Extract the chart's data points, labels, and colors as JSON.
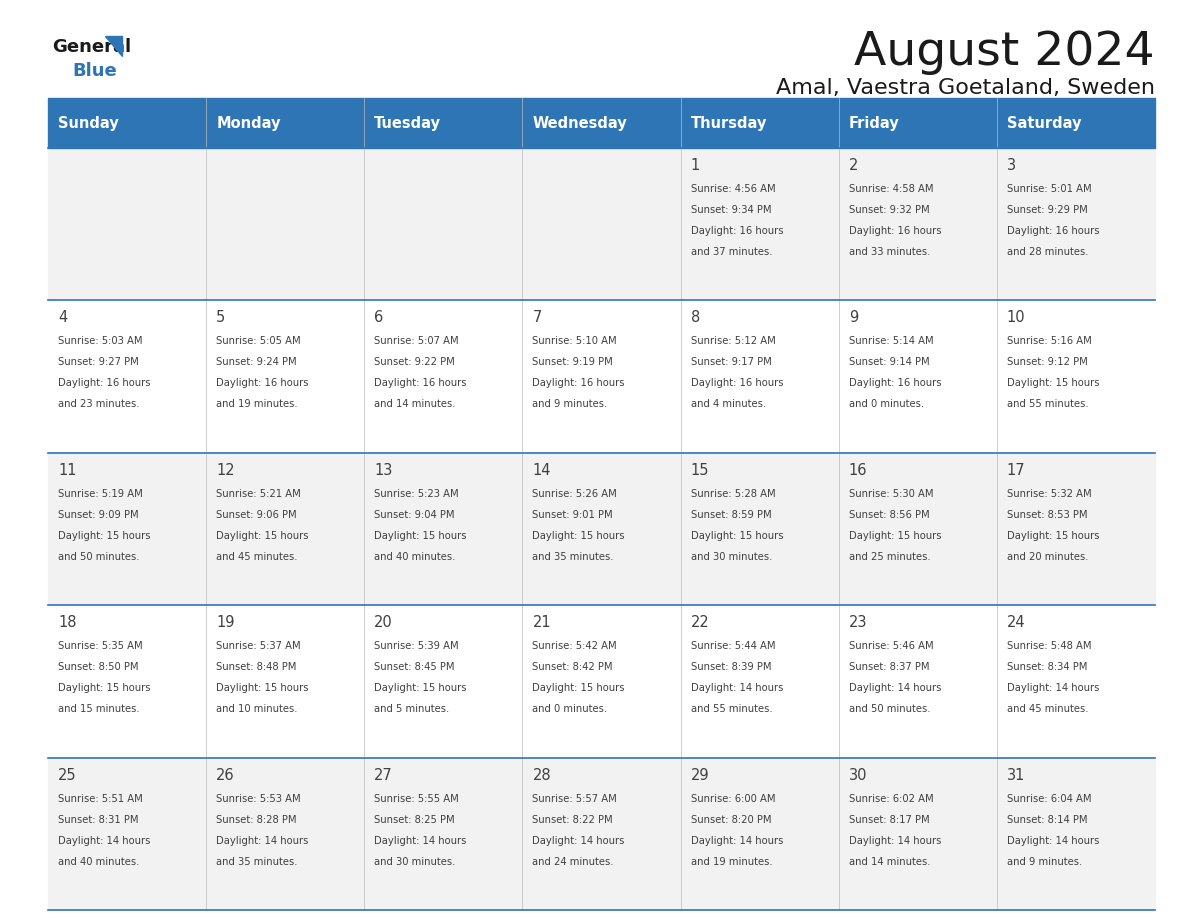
{
  "title": "August 2024",
  "subtitle": "Amal, Vaestra Goetaland, Sweden",
  "days_of_week": [
    "Sunday",
    "Monday",
    "Tuesday",
    "Wednesday",
    "Thursday",
    "Friday",
    "Saturday"
  ],
  "header_bg": "#2E75B6",
  "header_text_color": "#FFFFFF",
  "row_bg_even": "#F2F2F2",
  "row_bg_odd": "#FFFFFF",
  "separator_color": "#2E75B6",
  "text_color": "#404040",
  "calendar_data": [
    [
      null,
      null,
      null,
      null,
      {
        "day": 1,
        "sunrise": "4:56 AM",
        "sunset": "9:34 PM",
        "daylight_hours": 16,
        "daylight_minutes": 37
      },
      {
        "day": 2,
        "sunrise": "4:58 AM",
        "sunset": "9:32 PM",
        "daylight_hours": 16,
        "daylight_minutes": 33
      },
      {
        "day": 3,
        "sunrise": "5:01 AM",
        "sunset": "9:29 PM",
        "daylight_hours": 16,
        "daylight_minutes": 28
      }
    ],
    [
      {
        "day": 4,
        "sunrise": "5:03 AM",
        "sunset": "9:27 PM",
        "daylight_hours": 16,
        "daylight_minutes": 23
      },
      {
        "day": 5,
        "sunrise": "5:05 AM",
        "sunset": "9:24 PM",
        "daylight_hours": 16,
        "daylight_minutes": 19
      },
      {
        "day": 6,
        "sunrise": "5:07 AM",
        "sunset": "9:22 PM",
        "daylight_hours": 16,
        "daylight_minutes": 14
      },
      {
        "day": 7,
        "sunrise": "5:10 AM",
        "sunset": "9:19 PM",
        "daylight_hours": 16,
        "daylight_minutes": 9
      },
      {
        "day": 8,
        "sunrise": "5:12 AM",
        "sunset": "9:17 PM",
        "daylight_hours": 16,
        "daylight_minutes": 4
      },
      {
        "day": 9,
        "sunrise": "5:14 AM",
        "sunset": "9:14 PM",
        "daylight_hours": 16,
        "daylight_minutes": 0
      },
      {
        "day": 10,
        "sunrise": "5:16 AM",
        "sunset": "9:12 PM",
        "daylight_hours": 15,
        "daylight_minutes": 55
      }
    ],
    [
      {
        "day": 11,
        "sunrise": "5:19 AM",
        "sunset": "9:09 PM",
        "daylight_hours": 15,
        "daylight_minutes": 50
      },
      {
        "day": 12,
        "sunrise": "5:21 AM",
        "sunset": "9:06 PM",
        "daylight_hours": 15,
        "daylight_minutes": 45
      },
      {
        "day": 13,
        "sunrise": "5:23 AM",
        "sunset": "9:04 PM",
        "daylight_hours": 15,
        "daylight_minutes": 40
      },
      {
        "day": 14,
        "sunrise": "5:26 AM",
        "sunset": "9:01 PM",
        "daylight_hours": 15,
        "daylight_minutes": 35
      },
      {
        "day": 15,
        "sunrise": "5:28 AM",
        "sunset": "8:59 PM",
        "daylight_hours": 15,
        "daylight_minutes": 30
      },
      {
        "day": 16,
        "sunrise": "5:30 AM",
        "sunset": "8:56 PM",
        "daylight_hours": 15,
        "daylight_minutes": 25
      },
      {
        "day": 17,
        "sunrise": "5:32 AM",
        "sunset": "8:53 PM",
        "daylight_hours": 15,
        "daylight_minutes": 20
      }
    ],
    [
      {
        "day": 18,
        "sunrise": "5:35 AM",
        "sunset": "8:50 PM",
        "daylight_hours": 15,
        "daylight_minutes": 15
      },
      {
        "day": 19,
        "sunrise": "5:37 AM",
        "sunset": "8:48 PM",
        "daylight_hours": 15,
        "daylight_minutes": 10
      },
      {
        "day": 20,
        "sunrise": "5:39 AM",
        "sunset": "8:45 PM",
        "daylight_hours": 15,
        "daylight_minutes": 5
      },
      {
        "day": 21,
        "sunrise": "5:42 AM",
        "sunset": "8:42 PM",
        "daylight_hours": 15,
        "daylight_minutes": 0
      },
      {
        "day": 22,
        "sunrise": "5:44 AM",
        "sunset": "8:39 PM",
        "daylight_hours": 14,
        "daylight_minutes": 55
      },
      {
        "day": 23,
        "sunrise": "5:46 AM",
        "sunset": "8:37 PM",
        "daylight_hours": 14,
        "daylight_minutes": 50
      },
      {
        "day": 24,
        "sunrise": "5:48 AM",
        "sunset": "8:34 PM",
        "daylight_hours": 14,
        "daylight_minutes": 45
      }
    ],
    [
      {
        "day": 25,
        "sunrise": "5:51 AM",
        "sunset": "8:31 PM",
        "daylight_hours": 14,
        "daylight_minutes": 40
      },
      {
        "day": 26,
        "sunrise": "5:53 AM",
        "sunset": "8:28 PM",
        "daylight_hours": 14,
        "daylight_minutes": 35
      },
      {
        "day": 27,
        "sunrise": "5:55 AM",
        "sunset": "8:25 PM",
        "daylight_hours": 14,
        "daylight_minutes": 30
      },
      {
        "day": 28,
        "sunrise": "5:57 AM",
        "sunset": "8:22 PM",
        "daylight_hours": 14,
        "daylight_minutes": 24
      },
      {
        "day": 29,
        "sunrise": "6:00 AM",
        "sunset": "8:20 PM",
        "daylight_hours": 14,
        "daylight_minutes": 19
      },
      {
        "day": 30,
        "sunrise": "6:02 AM",
        "sunset": "8:17 PM",
        "daylight_hours": 14,
        "daylight_minutes": 14
      },
      {
        "day": 31,
        "sunrise": "6:04 AM",
        "sunset": "8:14 PM",
        "daylight_hours": 14,
        "daylight_minutes": 9
      }
    ]
  ]
}
